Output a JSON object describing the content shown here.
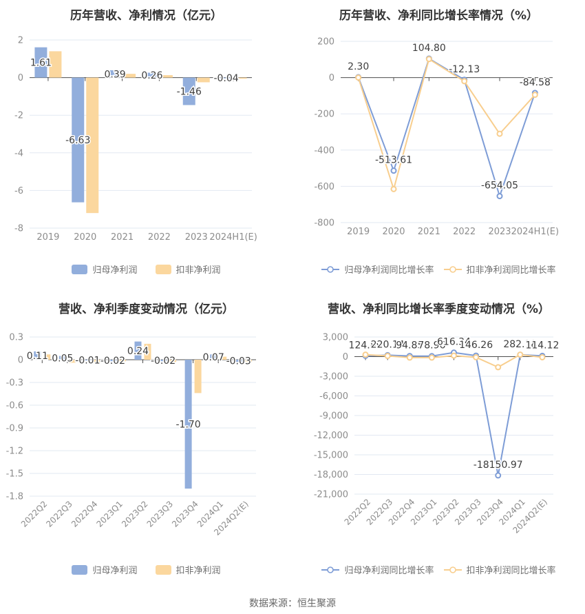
{
  "page": {
    "footer": "数据来源：恒生聚源"
  },
  "colors": {
    "background": "#FFFFFF",
    "blue_series": "#92AEDC",
    "yellow_series": "#FBD79E",
    "blue_line": "#7D9CD6",
    "yellow_line": "#F8CE8E",
    "grid": "#E2E8F2",
    "axis": "#4D4D4D",
    "tick_label": "#8C8C8C",
    "value_label": "#3D3D3D",
    "title": "#333333",
    "legend_text": "#707070",
    "footer_text": "#666666"
  },
  "chart_data": [
    {
      "type": "bar",
      "title": "历年营收、净利情况（亿元）",
      "categories": [
        "2019",
        "2020",
        "2021",
        "2022",
        "2023",
        "2024H1(E)"
      ],
      "series": [
        {
          "name": "归母净利润",
          "color": "#92AEDC",
          "labeled": true,
          "values": [
            1.61,
            -6.63,
            0.39,
            0.26,
            -1.46,
            -0.04
          ]
        },
        {
          "name": "扣非净利润",
          "color": "#FBD79E",
          "labeled": false,
          "values": [
            1.4,
            -7.2,
            0.2,
            0.13,
            -0.25,
            -0.06
          ]
        }
      ],
      "yticks": [
        2,
        0,
        -2,
        -4,
        -6,
        -8
      ],
      "ylim": [
        -8,
        2
      ],
      "grid": true,
      "legend_position": "bottom"
    },
    {
      "type": "line",
      "title": "历年营收、净利同比增长率情况（%）",
      "categories": [
        "2019",
        "2020",
        "2021",
        "2022",
        "2023",
        "2024H1(E)"
      ],
      "series": [
        {
          "name": "归母净利润同比增长率",
          "color": "#7D9CD6",
          "labeled": true,
          "values": [
            2.3,
            -513.61,
            104.8,
            -12.13,
            -654.05,
            -84.58
          ]
        },
        {
          "name": "扣非净利润同比增长率",
          "color": "#F8CE8E",
          "labeled": false,
          "values": [
            0,
            -615,
            102,
            -20,
            -310,
            -95
          ]
        }
      ],
      "yticks": [
        200,
        0,
        -200,
        -400,
        -600,
        -800
      ],
      "ylim": [
        -800,
        200
      ],
      "grid": true,
      "legend_position": "bottom"
    },
    {
      "type": "bar",
      "title": "营收、净利季度变动情况（亿元）",
      "categories": [
        "2022Q2",
        "2022Q3",
        "2022Q4",
        "2023Q1",
        "2023Q2",
        "2023Q3",
        "2023Q4",
        "2024Q1",
        "2024Q2(E)"
      ],
      "series": [
        {
          "name": "归母净利润",
          "color": "#92AEDC",
          "labeled": true,
          "values": [
            0.11,
            0.05,
            -0.01,
            -0.02,
            0.24,
            -0.02,
            -1.7,
            0.07,
            -0.03
          ]
        },
        {
          "name": "扣非净利润",
          "color": "#FBD79E",
          "labeled": false,
          "values": [
            0.07,
            -0.04,
            -0.04,
            -0.02,
            0.21,
            -0.03,
            -0.44,
            0.04,
            -0.03
          ]
        }
      ],
      "yticks": [
        0.3,
        0,
        -0.3,
        -0.6,
        -0.9,
        -1.2,
        -1.5,
        -1.8
      ],
      "ylim": [
        -1.8,
        0.3
      ],
      "grid": true,
      "legend_position": "bottom"
    },
    {
      "type": "line",
      "title": "营收、净利同比增长率季度变动情况（%）",
      "categories": [
        "2022Q2",
        "2022Q3",
        "2022Q4",
        "2023Q1",
        "2023Q2",
        "2023Q3",
        "2023Q4",
        "2024Q1",
        "2024Q2(E)"
      ],
      "series": [
        {
          "name": "归母净利润同比增长率",
          "color": "#7D9CD6",
          "labeled": true,
          "values": [
            124.89,
            220.14,
            94.85,
            78.96,
            616.34,
            146.26,
            -18150.97,
            282.18,
            114.12
          ]
        },
        {
          "name": "扣非净利润同比增长率",
          "color": "#F8CE8E",
          "labeled": false,
          "values": [
            300,
            100,
            -150,
            -150,
            150,
            -100,
            -1620,
            300,
            -100
          ]
        }
      ],
      "yticks": [
        3000,
        0,
        -3000,
        -6000,
        -9000,
        -12000,
        -15000,
        -18000,
        -21000
      ],
      "ylim": [
        -21000,
        3000
      ],
      "ytick_format": "comma",
      "grid": true,
      "legend_position": "bottom"
    }
  ]
}
